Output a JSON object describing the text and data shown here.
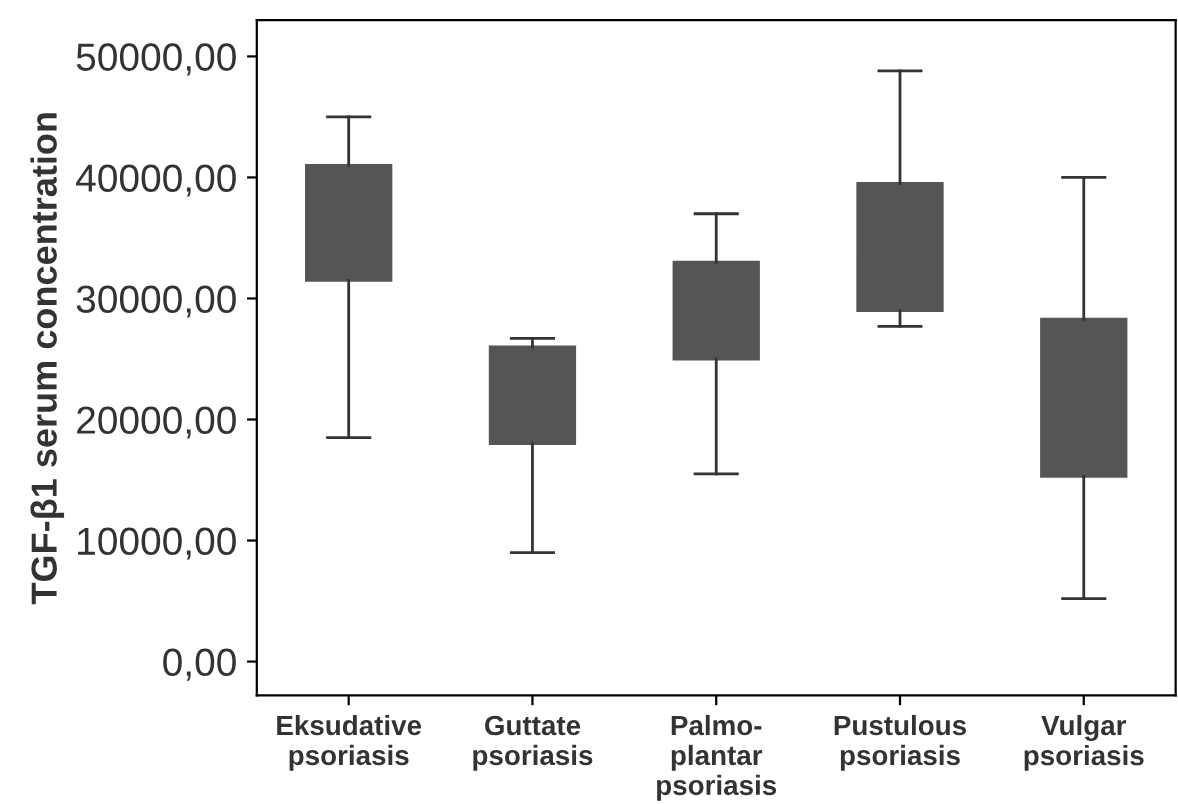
{
  "chart_data": {
    "type": "box",
    "ylabel": "TGF-β1 serum concentration",
    "categories": [
      "Eksudative\npsoriasis",
      "Guttate\npsoriasis",
      "Palmo-\nplantar\npsoriasis",
      "Pustulous\npsoriasis",
      "Vulgar\npsoriasis"
    ],
    "boxes": [
      {
        "low": 18500,
        "q1": 31500,
        "median": null,
        "q3": 41000,
        "high": 45000
      },
      {
        "low": 9000,
        "q1": 18000,
        "median": null,
        "q3": 26000,
        "high": 26700
      },
      {
        "low": 15500,
        "q1": 25000,
        "median": null,
        "q3": 33000,
        "high": 37000
      },
      {
        "low": 27700,
        "q1": 29000,
        "median": null,
        "q3": 39500,
        "high": 48800
      },
      {
        "low": 5200,
        "q1": 15300,
        "median": null,
        "q3": 28300,
        "high": 40000
      }
    ],
    "color": "#555555",
    "ylim": [
      -2800,
      53000
    ],
    "yticks": [
      {
        "value": 0,
        "label": "0,00"
      },
      {
        "value": 10000,
        "label": "10000,00"
      },
      {
        "value": 20000,
        "label": "20000,00"
      },
      {
        "value": 30000,
        "label": "30000,00"
      },
      {
        "value": 40000,
        "label": "40000,00"
      },
      {
        "value": 50000,
        "label": "50000,00"
      }
    ],
    "grid": false
  }
}
